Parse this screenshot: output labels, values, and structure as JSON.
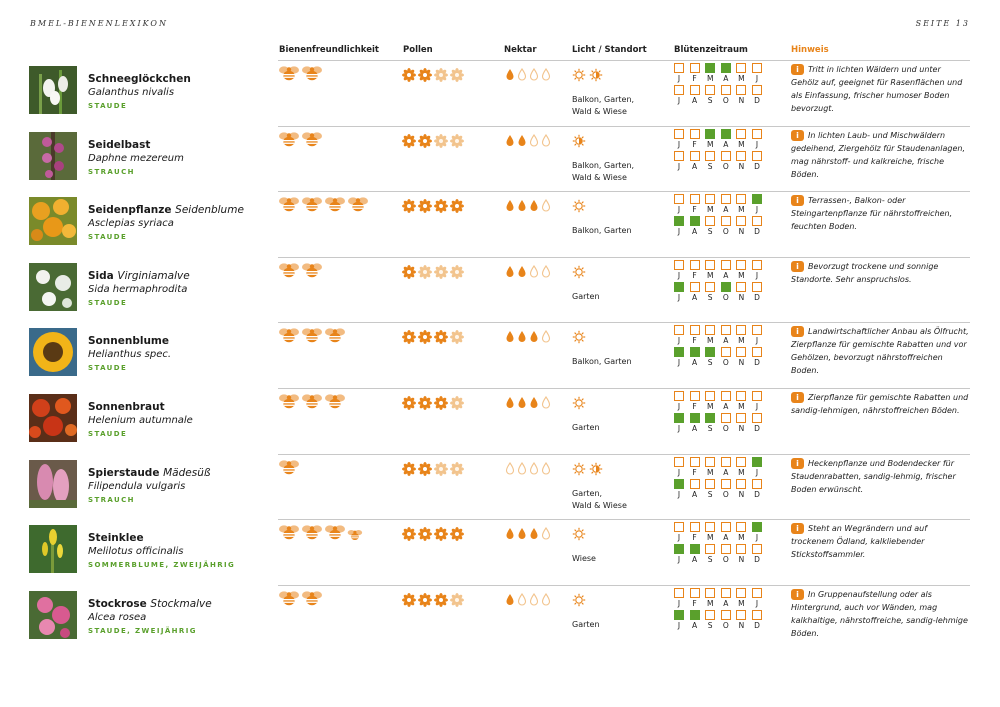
{
  "header": {
    "left": "BMEL-BIENENLEXIKON",
    "right": "SEITE 13"
  },
  "columns": {
    "bee": "Bienenfreundlichkeit",
    "pollen": "Pollen",
    "nectar": "Nektar",
    "light": "Licht / Standort",
    "bloom": "Blütenzeitraum",
    "hint": "Hinweis"
  },
  "month_labels": {
    "first_half": [
      "J",
      "F",
      "M",
      "A",
      "M",
      "J"
    ],
    "second_half": [
      "J",
      "A",
      "S",
      "O",
      "N",
      "D"
    ]
  },
  "colors": {
    "accent": "#e8841a",
    "green": "#5aa02c",
    "filled_rating": "#e8841a",
    "empty_rating": "#f2c48e"
  },
  "icons": {
    "bee": "bee-icon",
    "pollen": "pollen-flower-icon",
    "nectar": "nectar-drop-icon",
    "sun": "sun-icon",
    "half_shade": "half-shade-icon",
    "info": "info-icon"
  },
  "info_glyph": "i",
  "plants": [
    {
      "name": "Schneeglöckchen",
      "trivial": "",
      "latin": "Galanthus nivalis",
      "type": "STAUDE",
      "bee": [
        2,
        0
      ],
      "pollen": [
        2,
        2
      ],
      "nectar": [
        1,
        3
      ],
      "light": [
        "sun",
        "half-shade"
      ],
      "location": [
        "Balkon, Garten,",
        "Wald & Wiese"
      ],
      "bloom": [
        0,
        0,
        1,
        1,
        0,
        0,
        0,
        0,
        0,
        0,
        0,
        0
      ],
      "hint": "Tritt in lichten Wäldern und unter Gehölz auf, geeignet für Rasenflächen und als Einfassung, frischer humoser Boden bevorzugt.",
      "photo": "snowdrop"
    },
    {
      "name": "Seidelbast",
      "trivial": "",
      "latin": "Daphne mezereum",
      "type": "STRAUCH",
      "bee": [
        2,
        0
      ],
      "pollen": [
        2,
        2
      ],
      "nectar": [
        2,
        2
      ],
      "light": [
        "half-shade"
      ],
      "location": [
        "Balkon, Garten,",
        "Wald & Wiese"
      ],
      "bloom": [
        0,
        0,
        1,
        1,
        0,
        0,
        0,
        0,
        0,
        0,
        0,
        0
      ],
      "hint": "In lichten Laub- und Mischwäldern gedeihend, Ziergehölz für Staudenanlagen, mag nährstoff- und kalkreiche, frische Böden.",
      "photo": "daphne"
    },
    {
      "name": "Seidenpflanze",
      "trivial": "Seidenblume",
      "latin": "Asclepias syriaca",
      "type": "STAUDE",
      "bee": [
        4,
        0
      ],
      "pollen": [
        4,
        0
      ],
      "nectar": [
        3,
        1
      ],
      "light": [
        "sun"
      ],
      "location": [
        "Balkon, Garten"
      ],
      "bloom": [
        0,
        0,
        0,
        0,
        0,
        1,
        1,
        1,
        0,
        0,
        0,
        0
      ],
      "hint": "Terrassen-, Balkon- oder Steingartenpflanze für nährstoffreichen, feuchten Boden.",
      "photo": "asclepias"
    },
    {
      "name": "Sida",
      "trivial": "Virginiamalve",
      "latin": "Sida hermaphrodita",
      "type": "STAUDE",
      "bee": [
        2,
        0
      ],
      "pollen": [
        1,
        3
      ],
      "nectar": [
        2,
        2
      ],
      "light": [
        "sun"
      ],
      "location": [
        "Garten"
      ],
      "bloom": [
        0,
        0,
        0,
        0,
        0,
        0,
        1,
        0,
        0,
        1,
        0,
        0
      ],
      "hint": "Bevorzugt trockene und sonnige Standorte. Sehr anspruchslos.",
      "photo": "sida"
    },
    {
      "name": "Sonnenblume",
      "trivial": "",
      "latin": "Helianthus spec.",
      "type": "STAUDE",
      "bee": [
        3,
        0
      ],
      "pollen": [
        3,
        1
      ],
      "nectar": [
        3,
        1
      ],
      "light": [
        "sun"
      ],
      "location": [
        "Balkon, Garten"
      ],
      "bloom": [
        0,
        0,
        0,
        0,
        0,
        0,
        1,
        1,
        1,
        0,
        0,
        0
      ],
      "hint": "Landwirtschaftlicher Anbau als Ölfrucht, Zierpflanze für gemischte Rabatten und vor Gehölzen, bevorzugt nährstoffreichen Boden.",
      "photo": "sunflower"
    },
    {
      "name": "Sonnenbraut",
      "trivial": "",
      "latin": "Helenium autumnale",
      "type": "STAUDE",
      "bee": [
        3,
        0
      ],
      "pollen": [
        3,
        1
      ],
      "nectar": [
        3,
        1
      ],
      "light": [
        "sun"
      ],
      "location": [
        "Garten"
      ],
      "bloom": [
        0,
        0,
        0,
        0,
        0,
        0,
        1,
        1,
        1,
        0,
        0,
        0
      ],
      "hint": "Zierpflanze für gemischte Rabatten und sandig-lehmigen, nährstoffreichen Böden.",
      "photo": "helenium"
    },
    {
      "name": "Spierstaude",
      "trivial": "Mädesüß",
      "latin": "Filipendula vulgaris",
      "type": "STRAUCH",
      "bee": [
        1,
        0
      ],
      "pollen": [
        2,
        2
      ],
      "nectar": [
        0,
        4
      ],
      "light": [
        "sun",
        "half-shade"
      ],
      "location": [
        "Garten,",
        "Wald & Wiese"
      ],
      "bloom": [
        0,
        0,
        0,
        0,
        0,
        1,
        1,
        0,
        0,
        0,
        0,
        0
      ],
      "hint": "Heckenpflanze und Bodendecker für Staudenrabatten, sandig-lehmig, frischer Boden erwünscht.",
      "photo": "spirea"
    },
    {
      "name": "Steinklee",
      "trivial": "",
      "latin": "Melilotus officinalis",
      "type": "SOMMERBLUME, ZWEIJÄHRIG",
      "bee": [
        3,
        1
      ],
      "pollen": [
        4,
        0
      ],
      "nectar": [
        3,
        1
      ],
      "light": [
        "sun"
      ],
      "location": [
        "Wiese"
      ],
      "bloom": [
        0,
        0,
        0,
        0,
        0,
        1,
        1,
        1,
        0,
        0,
        0,
        0
      ],
      "hint": "Steht an Wegrändern und auf trockenem Ödland, kalkliebender Stickstoffsammler.",
      "photo": "melilotus"
    },
    {
      "name": "Stockrose",
      "trivial": "Stockmalve",
      "latin": "Alcea rosea",
      "type": "STAUDE, ZWEIJÄHRIG",
      "bee": [
        2,
        0
      ],
      "pollen": [
        3,
        1
      ],
      "nectar": [
        1,
        3
      ],
      "light": [
        "sun"
      ],
      "location": [
        "Garten"
      ],
      "bloom": [
        0,
        0,
        0,
        0,
        0,
        0,
        1,
        1,
        0,
        0,
        0,
        0
      ],
      "hint": "In Gruppenaufstellung oder als Hintergrund, auch vor Wänden, mag kalkhaltige, nährstoffreiche, sandig-lehmige Böden.",
      "photo": "alcea"
    }
  ]
}
